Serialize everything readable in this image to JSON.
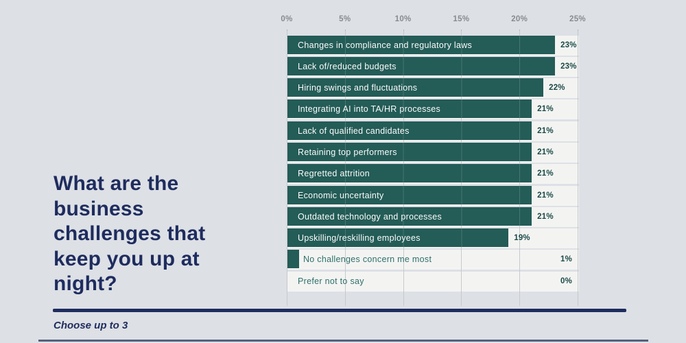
{
  "question": {
    "title": "What are the\nbusiness\nchallenges that\nkeep you up at\nnight?",
    "note": "Choose up to 3"
  },
  "colors": {
    "bg": "#dde0e5",
    "bar": "#245c57",
    "track": "#f3f4f2",
    "navy": "#1e2c5e",
    "value": "#1b4a46",
    "teal_text": "#2f6f6a",
    "axis": "#878b90",
    "grid": "#c6c9cd",
    "tick": "#b3b7bb",
    "rule": "#55627b"
  },
  "chart_data": {
    "type": "bar",
    "orientation": "horizontal",
    "title": "What are the business challenges that keep you up at night?",
    "xlabel": "",
    "ylabel": "",
    "grid": true,
    "xlim": [
      0,
      25
    ],
    "axis_ticks": [
      "0%",
      "5%",
      "10%",
      "15%",
      "20%",
      "25%"
    ],
    "categories": [
      "Changes in compliance and regulatory laws",
      "Lack of/reduced budgets",
      "Hiring swings and fluctuations",
      "Integrating AI into TA/HR processes",
      "Lack of qualified candidates",
      "Retaining top performers",
      "Regretted attrition",
      "Economic uncertainty",
      "Outdated technology and processes",
      "Upskilling/reskilling employees",
      "No challenges concern me most",
      "Prefer not to say"
    ],
    "values": [
      23,
      23,
      22,
      21,
      21,
      21,
      21,
      21,
      21,
      19,
      1,
      0
    ],
    "value_labels": [
      "23%",
      "23%",
      "22%",
      "21%",
      "21%",
      "21%",
      "21%",
      "21%",
      "21%",
      "19%",
      "1%",
      "0%"
    ]
  }
}
